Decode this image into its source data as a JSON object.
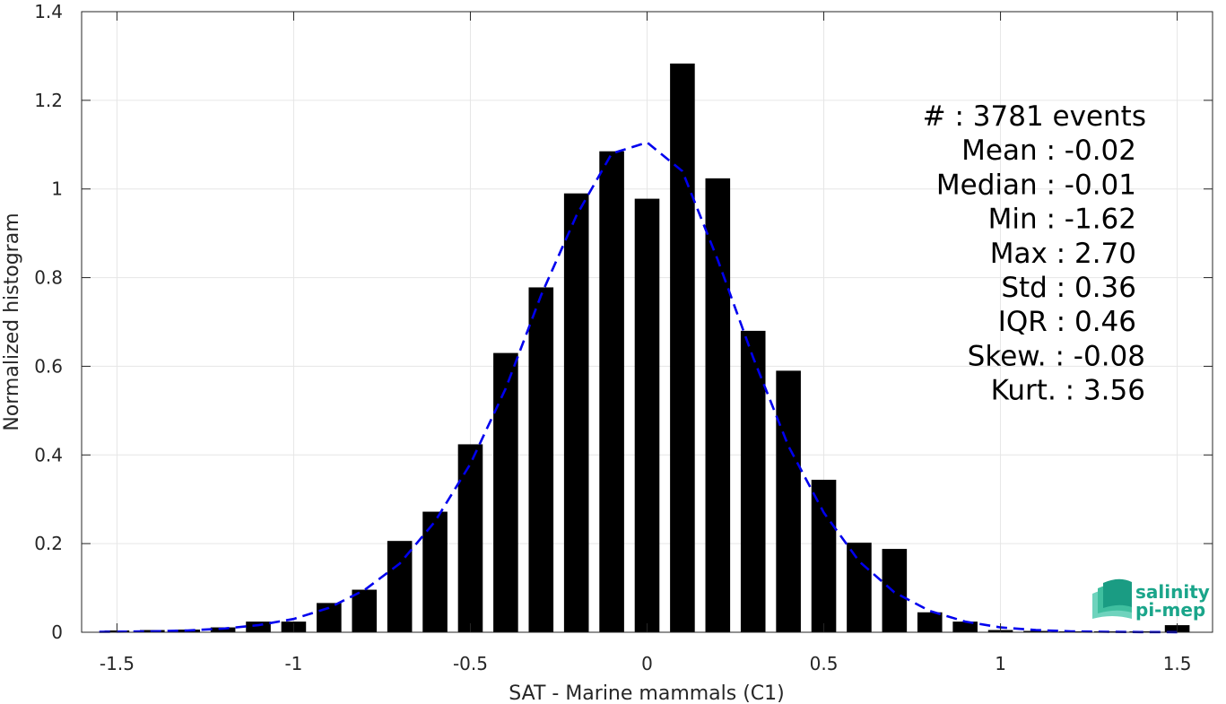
{
  "chart_data": {
    "type": "bar",
    "xlabel": "SAT - Marine mammals (C1)",
    "ylabel": "Normalized histogram",
    "xlim": [
      -1.6,
      1.6
    ],
    "ylim": [
      0,
      1.4
    ],
    "xticks": [
      -1.5,
      -1,
      -0.5,
      0,
      0.5,
      1,
      1.5
    ],
    "xtick_labels": [
      "-1.5",
      "-1",
      "-0.5",
      "0",
      "0.5",
      "1",
      "1.5"
    ],
    "yticks": [
      0,
      0.2,
      0.4,
      0.6,
      0.8,
      1,
      1.2,
      1.4
    ],
    "ytick_labels": [
      "0",
      "0.2",
      "0.4",
      "0.6",
      "0.8",
      "1",
      "1.2",
      "1.4"
    ],
    "grid": true,
    "bar_width": 0.07,
    "bar_color": "#000000",
    "bars": {
      "x": [
        -1.5,
        -1.4,
        -1.3,
        -1.2,
        -1.1,
        -1.0,
        -0.9,
        -0.8,
        -0.7,
        -0.6,
        -0.5,
        -0.4,
        -0.3,
        -0.2,
        -0.1,
        0.0,
        0.1,
        0.2,
        0.3,
        0.4,
        0.5,
        0.6,
        0.7,
        0.8,
        0.9,
        1.0,
        1.1,
        1.2,
        1.3,
        1.4,
        1.5
      ],
      "values": [
        0.004,
        0.005,
        0.006,
        0.011,
        0.024,
        0.024,
        0.066,
        0.096,
        0.206,
        0.272,
        0.424,
        0.63,
        0.778,
        0.99,
        1.085,
        0.978,
        1.283,
        1.024,
        0.68,
        0.59,
        0.344,
        0.202,
        0.188,
        0.045,
        0.024,
        0.005,
        0.003,
        0.002,
        0.002,
        0.002,
        0.016
      ]
    },
    "fit_curve": {
      "style": "dashed",
      "color": "#0000ee",
      "x": [
        -1.55,
        -1.4,
        -1.3,
        -1.2,
        -1.1,
        -1.0,
        -0.9,
        -0.8,
        -0.7,
        -0.6,
        -0.5,
        -0.4,
        -0.3,
        -0.2,
        -0.1,
        0.0,
        0.1,
        0.2,
        0.3,
        0.4,
        0.5,
        0.6,
        0.7,
        0.8,
        0.9,
        1.0,
        1.1,
        1.2,
        1.3,
        1.4,
        1.5
      ],
      "y": [
        0.001,
        0.002,
        0.004,
        0.008,
        0.016,
        0.03,
        0.055,
        0.095,
        0.155,
        0.25,
        0.38,
        0.55,
        0.76,
        0.94,
        1.08,
        1.105,
        1.04,
        0.84,
        0.62,
        0.42,
        0.27,
        0.16,
        0.09,
        0.048,
        0.024,
        0.011,
        0.005,
        0.002,
        0.001,
        0.0005,
        0.0003
      ]
    },
    "stats": [
      {
        "label": "#  : 3781 events"
      },
      {
        "label": "Mean : -0.02"
      },
      {
        "label": "Median : -0.01"
      },
      {
        "label": "Min : -1.62"
      },
      {
        "label": "Max : 2.70"
      },
      {
        "label": "Std : 0.36"
      },
      {
        "label": "IQR : 0.46"
      },
      {
        "label": "Skew. : -0.08"
      },
      {
        "label": "Kurt. : 3.56"
      }
    ]
  },
  "logo": {
    "line1": "salinity",
    "line2": "pi-mep",
    "color": "#1aa58a"
  }
}
